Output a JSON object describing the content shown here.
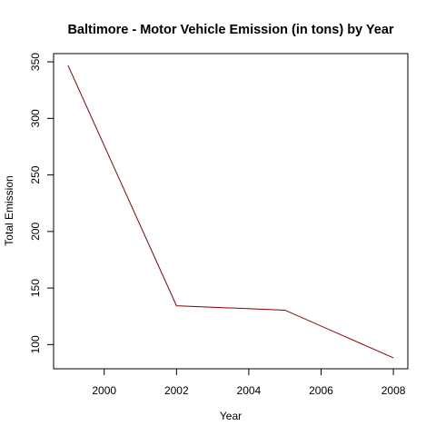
{
  "chart_data": {
    "type": "line",
    "title": "Baltimore - Motor Vehicle Emission (in tons) by Year",
    "xlabel": "Year",
    "ylabel": "Total Emission",
    "x_ticks": [
      2000,
      2002,
      2004,
      2006,
      2008
    ],
    "y_ticks": [
      100,
      150,
      200,
      250,
      300,
      350
    ],
    "xlim": [
      1998.6,
      2008.4
    ],
    "ylim": [
      78.6,
      357.3
    ],
    "series": [
      {
        "x": [
          1999,
          2002,
          2005,
          2008
        ],
        "y": [
          346.82,
          134.31,
          130.43,
          88.28
        ],
        "color": "#8b0000"
      }
    ],
    "grid": false,
    "legend": "none"
  }
}
